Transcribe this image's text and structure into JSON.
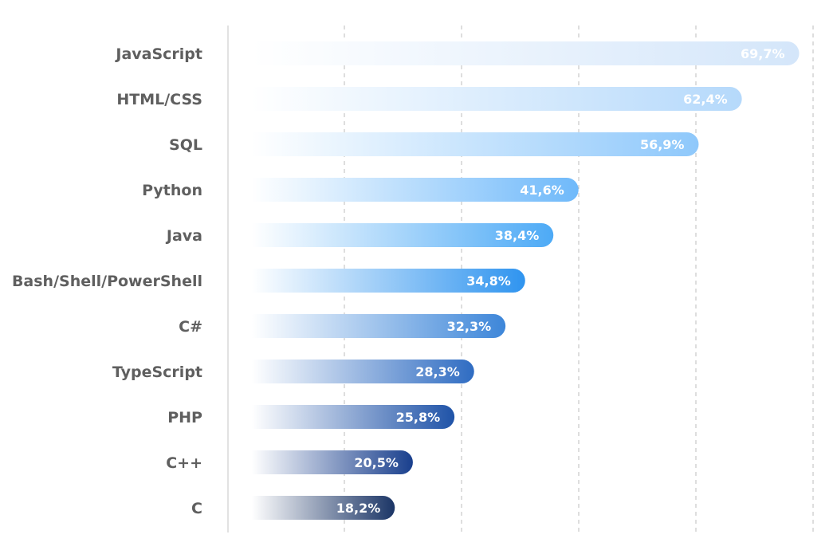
{
  "chart_data": {
    "type": "bar",
    "orientation": "horizontal",
    "categories": [
      "JavaScript",
      "HTML/CSS",
      "SQL",
      "Python",
      "Java",
      "Bash/Shell/PowerShell",
      "C#",
      "TypeScript",
      "PHP",
      "C++",
      "C"
    ],
    "values": [
      69.7,
      62.4,
      56.9,
      41.6,
      38.4,
      34.8,
      32.3,
      28.3,
      25.8,
      20.5,
      18.2
    ],
    "value_labels": [
      "69,7%",
      "62,4%",
      "56,9%",
      "41,6%",
      "38,4%",
      "34,8%",
      "32,3%",
      "28,3%",
      "25,8%",
      "20,5%",
      "18,2%"
    ],
    "title": "",
    "xlabel": "",
    "ylabel": "",
    "grid": true,
    "legend": "none",
    "colors": {
      "gradient_end": [
        "#d4e6fa",
        "#b5d9fb",
        "#8ec8fb",
        "#6fb9fa",
        "#4daaf6",
        "#2f94ef",
        "#3d86d9",
        "#2f6cc2",
        "#1f53a8",
        "#193f8d",
        "#1b3566"
      ],
      "gradient_start": "#ffffff",
      "axis": "#cfcfcf",
      "grid": "#bdbdbd",
      "category_text": "#5f5f5f",
      "value_text": "#ffffff"
    }
  }
}
